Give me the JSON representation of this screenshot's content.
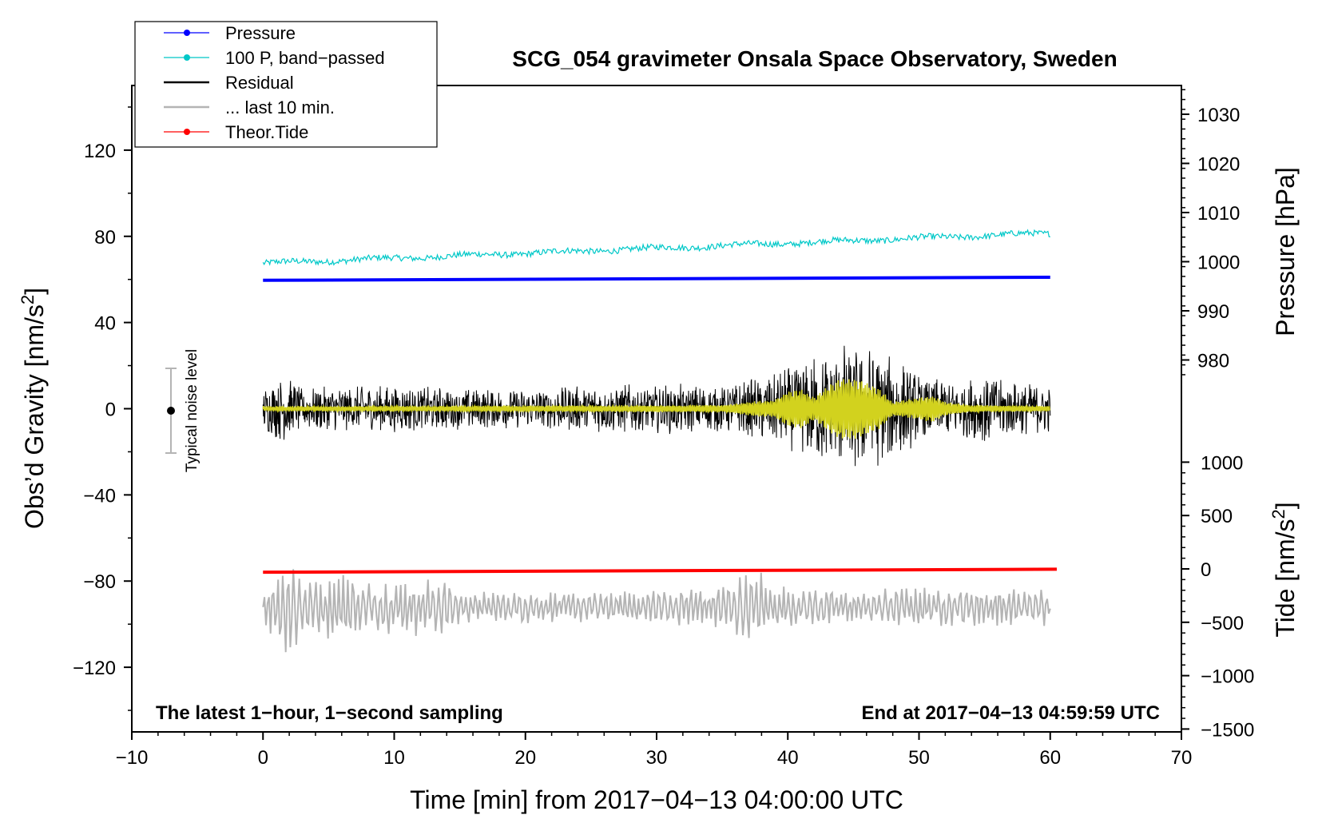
{
  "chart_data": {
    "type": "line",
    "title": "SCG_054 gravimeter Onsala Space Observatory, Sweden",
    "xlabel": "Time [min] from 2017−04−13 04:00:00 UTC",
    "ylabel_left": "Obs’d Gravity [nm/s",
    "ylabel_left_sup": "2",
    "ylabel_left_close": "]",
    "ylabel_right_top": "Pressure [hPa]",
    "ylabel_right_bottom": "Tide [nm/s",
    "ylabel_right_bottom_sup": "2",
    "ylabel_right_bottom_close": "]",
    "xlim": [
      -10,
      70
    ],
    "ylim": [
      -150,
      150
    ],
    "x_ticks": [
      -10,
      0,
      10,
      20,
      30,
      40,
      50,
      60,
      70
    ],
    "x_tick_labels": [
      "−10",
      "0",
      "10",
      "20",
      "30",
      "40",
      "50",
      "60",
      "70"
    ],
    "y_ticks": [
      120,
      80,
      40,
      0,
      -40,
      -80,
      -120
    ],
    "y_tick_labels": [
      "120",
      "80",
      "40",
      "0",
      "−40",
      "−80",
      "−120"
    ],
    "pressure_axis": {
      "ticks": [
        1030,
        1020,
        1010,
        1000,
        990,
        980
      ],
      "tick_labels": [
        "1030",
        "1020",
        "1010",
        "1000",
        "990",
        "980"
      ],
      "range_shown": [
        980,
        1030
      ]
    },
    "tide_axis": {
      "ticks": [
        1000,
        500,
        0,
        -500,
        -1000,
        -1500
      ],
      "tick_labels": [
        "1000",
        "500",
        "0",
        "−500",
        "−1000",
        "−1500"
      ]
    },
    "legend": {
      "position": "top-left",
      "entries": [
        {
          "label": "Pressure",
          "color": "#0000ff",
          "marker": true
        },
        {
          "label": "100 P, band−passed",
          "color": "#00c8c8",
          "marker": true
        },
        {
          "label": "Residual",
          "color": "#000000",
          "marker": false
        },
        {
          "label": "... last 10 min.",
          "color": "#b4b4b4",
          "marker": false
        },
        {
          "label": "Theor.Tide",
          "color": "#ff0000",
          "marker": true
        }
      ]
    },
    "series": [
      {
        "name": "Pressure",
        "color": "#0000ff",
        "axis": "left",
        "x": [
          0,
          60
        ],
        "y": [
          59.6,
          61.0
        ]
      },
      {
        "name": "100 P, band−passed",
        "color": "#00c8c8",
        "axis": "left",
        "x_range": [
          0,
          60
        ],
        "trend_start": 67.5,
        "trend_end": 81.5,
        "noise_amp": 1.4
      },
      {
        "name": "Residual",
        "color": "#000000",
        "axis": "left",
        "x_range": [
          0,
          60
        ],
        "envelope": [
          [
            0,
            10
          ],
          [
            1.5,
            16
          ],
          [
            3,
            10
          ],
          [
            10,
            11
          ],
          [
            20,
            9
          ],
          [
            25,
            11
          ],
          [
            30,
            12
          ],
          [
            35,
            11
          ],
          [
            38,
            15
          ],
          [
            41,
            22
          ],
          [
            43,
            28
          ],
          [
            45,
            32
          ],
          [
            46.5,
            30
          ],
          [
            48,
            25
          ],
          [
            50,
            16
          ],
          [
            53,
            13
          ],
          [
            55,
            17
          ],
          [
            57,
            13
          ],
          [
            60,
            11
          ]
        ]
      },
      {
        "name": "filtered residual",
        "color": "#d2d21e",
        "axis": "left",
        "x_range": [
          0,
          60
        ],
        "envelope": [
          [
            0,
            1
          ],
          [
            35,
            1.5
          ],
          [
            37,
            3
          ],
          [
            39,
            4
          ],
          [
            40,
            8
          ],
          [
            41,
            9
          ],
          [
            42,
            5
          ],
          [
            43,
            10
          ],
          [
            44,
            14
          ],
          [
            45,
            14
          ],
          [
            46,
            12
          ],
          [
            47,
            9
          ],
          [
            48,
            3
          ],
          [
            50,
            5
          ],
          [
            51,
            6
          ],
          [
            52,
            3
          ],
          [
            54,
            1.5
          ],
          [
            60,
            1
          ]
        ]
      },
      {
        "name": "... last 10 min.",
        "color": "#b4b4b4",
        "axis": "left",
        "x_range": [
          0,
          60
        ],
        "center": -92,
        "envelope": [
          [
            0,
            6
          ],
          [
            1,
            18
          ],
          [
            2,
            24
          ],
          [
            3,
            14
          ],
          [
            4,
            15
          ],
          [
            6,
            15
          ],
          [
            7,
            18
          ],
          [
            8,
            13
          ],
          [
            10,
            12
          ],
          [
            12,
            14
          ],
          [
            14,
            12
          ],
          [
            16,
            7
          ],
          [
            20,
            8
          ],
          [
            24,
            7
          ],
          [
            28,
            8
          ],
          [
            32,
            10
          ],
          [
            35,
            12
          ],
          [
            37,
            15
          ],
          [
            38,
            17
          ],
          [
            39,
            10
          ],
          [
            42,
            9
          ],
          [
            46,
            8
          ],
          [
            50,
            9
          ],
          [
            55,
            9
          ],
          [
            58,
            8
          ],
          [
            60,
            10
          ]
        ]
      },
      {
        "name": "Theor.Tide",
        "color": "#ff0000",
        "axis": "left",
        "x": [
          0,
          60.5
        ],
        "y": [
          -75.9,
          -74.5
        ]
      }
    ],
    "noise_marker": {
      "label": "Typical noise level",
      "x": -7,
      "y": 0,
      "err": 20
    },
    "annotations": {
      "bottom_left": "The latest 1−hour, 1−second sampling",
      "bottom_right": "End at 2017−04−13 04:59:59 UTC"
    }
  }
}
